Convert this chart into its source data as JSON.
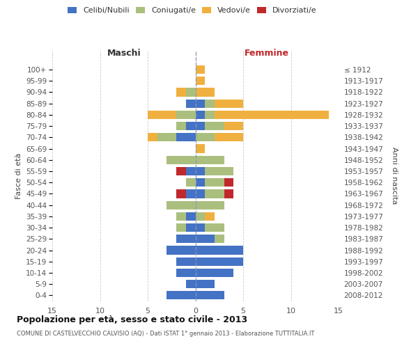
{
  "age_groups": [
    "0-4",
    "5-9",
    "10-14",
    "15-19",
    "20-24",
    "25-29",
    "30-34",
    "35-39",
    "40-44",
    "45-49",
    "50-54",
    "55-59",
    "60-64",
    "65-69",
    "70-74",
    "75-79",
    "80-84",
    "85-89",
    "90-94",
    "95-99",
    "100+"
  ],
  "birth_years": [
    "2008-2012",
    "2003-2007",
    "1998-2002",
    "1993-1997",
    "1988-1992",
    "1983-1987",
    "1978-1982",
    "1973-1977",
    "1968-1972",
    "1963-1967",
    "1958-1962",
    "1953-1957",
    "1948-1952",
    "1943-1947",
    "1938-1942",
    "1933-1937",
    "1928-1932",
    "1923-1927",
    "1918-1922",
    "1913-1917",
    "≤ 1912"
  ],
  "males": {
    "celibi": [
      3,
      1,
      2,
      2,
      3,
      2,
      1,
      1,
      0,
      1,
      0,
      1,
      0,
      0,
      2,
      1,
      0,
      1,
      0,
      0,
      0
    ],
    "coniugati": [
      0,
      0,
      0,
      0,
      0,
      0,
      1,
      1,
      3,
      1,
      1,
      1,
      3,
      0,
      2,
      1,
      2,
      0,
      1,
      0,
      0
    ],
    "vedovi": [
      0,
      0,
      0,
      0,
      0,
      0,
      0,
      0,
      0,
      0,
      0,
      0,
      0,
      0,
      1,
      0,
      3,
      0,
      1,
      0,
      0
    ],
    "divorziati": [
      0,
      0,
      0,
      0,
      0,
      0,
      0,
      0,
      0,
      1,
      0,
      1,
      0,
      0,
      0,
      0,
      0,
      0,
      0,
      0,
      0
    ]
  },
  "females": {
    "nubili": [
      3,
      2,
      4,
      5,
      5,
      2,
      1,
      0,
      0,
      1,
      1,
      1,
      0,
      0,
      0,
      1,
      1,
      1,
      0,
      0,
      0
    ],
    "coniugate": [
      0,
      0,
      0,
      0,
      0,
      1,
      2,
      1,
      3,
      2,
      2,
      3,
      3,
      0,
      2,
      2,
      1,
      1,
      0,
      0,
      0
    ],
    "vedove": [
      0,
      0,
      0,
      0,
      0,
      0,
      0,
      1,
      0,
      0,
      1,
      0,
      0,
      1,
      3,
      2,
      12,
      3,
      2,
      1,
      1
    ],
    "divorziate": [
      0,
      0,
      0,
      0,
      0,
      0,
      0,
      0,
      0,
      1,
      1,
      0,
      0,
      0,
      0,
      0,
      0,
      0,
      0,
      0,
      0
    ]
  },
  "colors": {
    "celibi_nubili": "#4472C4",
    "coniugati": "#AABF7E",
    "vedovi": "#F0B040",
    "divorziati": "#C0282C"
  },
  "title": "Popolazione per età, sesso e stato civile - 2013",
  "subtitle": "COMUNE DI CASTELVECCHIO CALVISIO (AQ) - Dati ISTAT 1° gennaio 2013 - Elaborazione TUTTITALIA.IT",
  "ylabel_left": "Fasce di età",
  "ylabel_right": "Anni di nascita",
  "header_maschi": "Maschi",
  "header_femmine": "Femmine",
  "xlim": 15,
  "xticks": [
    -15,
    -10,
    -5,
    0,
    5,
    10,
    15
  ],
  "xticklabels": [
    "15",
    "10",
    "5",
    "0",
    "5",
    "10",
    "15"
  ],
  "background_color": "#ffffff",
  "grid_color": "#bbbbbb",
  "legend_labels": [
    "Celibi/Nubili",
    "Coniugati/e",
    "Vedovi/e",
    "Divorziati/e"
  ]
}
